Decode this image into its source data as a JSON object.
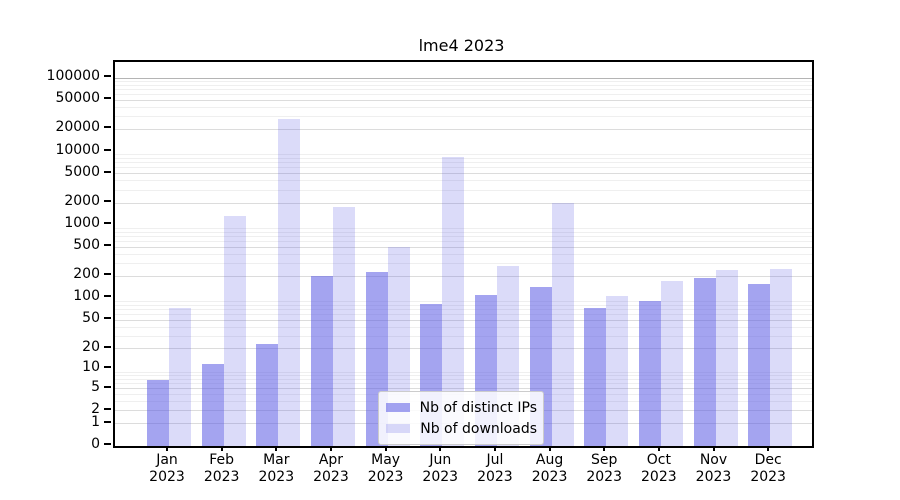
{
  "chart_data": {
    "type": "bar",
    "title": "lme4 2023",
    "year_label": "2023",
    "categories": [
      "Jan",
      "Feb",
      "Mar",
      "Apr",
      "May",
      "Jun",
      "Jul",
      "Aug",
      "Sep",
      "Oct",
      "Nov",
      "Dec"
    ],
    "series": [
      {
        "key": "ips",
        "name": "Nb of distinct IPs",
        "color": "rgba(90,90,228,0.55)",
        "values": [
          7,
          12,
          23,
          205,
          230,
          85,
          113,
          145,
          73,
          92,
          190,
          160
        ]
      },
      {
        "key": "downloads",
        "name": "Nb of downloads",
        "color": "rgba(90,90,228,0.22)",
        "values": [
          75,
          1350,
          28000,
          1790,
          510,
          8500,
          280,
          1990,
          108,
          173,
          245,
          250
        ]
      }
    ],
    "yscale": "log1p",
    "ylim": [
      0,
      100000
    ],
    "yticks": [
      0,
      1,
      2,
      5,
      10,
      20,
      50,
      100,
      200,
      500,
      1000,
      2000,
      5000,
      10000,
      20000,
      50000,
      100000
    ],
    "grid": "on",
    "legend_position": "inside lower center",
    "colors": {
      "axis": "#000000",
      "grid_major": "#b4b4b4",
      "grid_minor": "#efefef"
    }
  }
}
